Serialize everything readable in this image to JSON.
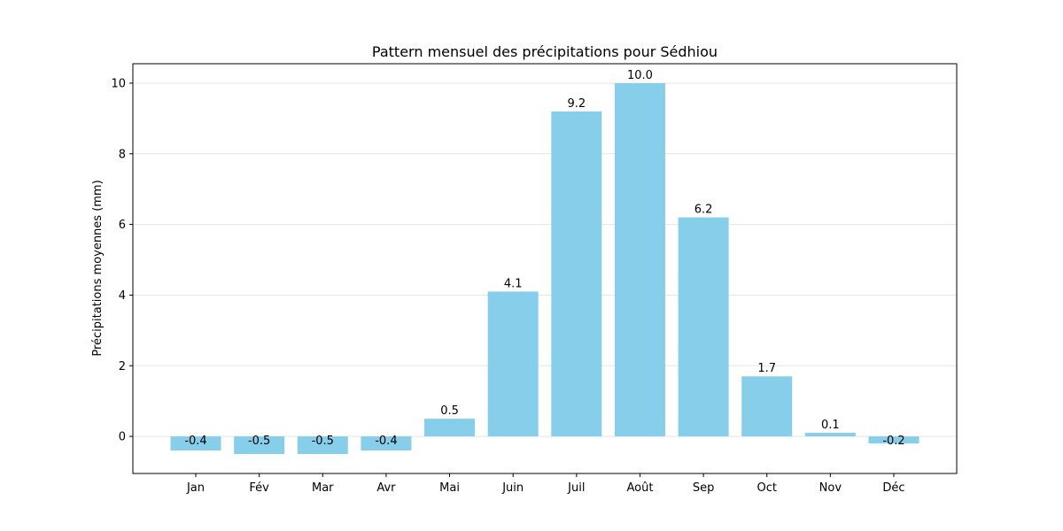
{
  "chart_data": {
    "type": "bar",
    "title": "Pattern mensuel des précipitations pour Sédhiou",
    "xlabel": "",
    "ylabel": "Précipitations moyennes (mm)",
    "categories": [
      "Jan",
      "Fév",
      "Mar",
      "Avr",
      "Mai",
      "Juin",
      "Juil",
      "Août",
      "Sep",
      "Oct",
      "Nov",
      "Déc"
    ],
    "values": [
      -0.4,
      -0.5,
      -0.5,
      -0.4,
      0.5,
      4.1,
      9.2,
      10.0,
      6.2,
      1.7,
      0.1,
      -0.2
    ],
    "value_labels": [
      "-0.4",
      "-0.5",
      "-0.5",
      "-0.4",
      "0.5",
      "4.1",
      "9.2",
      "10.0",
      "6.2",
      "1.7",
      "0.1",
      "-0.2"
    ],
    "ylim": [
      -1.05,
      10.55
    ],
    "yticks": [
      0,
      2,
      4,
      6,
      8,
      10
    ],
    "grid": "horizontal",
    "bar_color": "#87CEEB"
  }
}
